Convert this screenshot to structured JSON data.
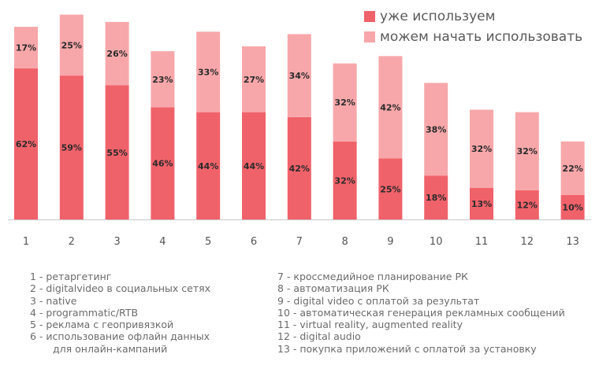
{
  "chart_data": {
    "type": "bar",
    "stacked": true,
    "categories": [
      "1",
      "2",
      "3",
      "4",
      "5",
      "6",
      "7",
      "8",
      "9",
      "10",
      "11",
      "12",
      "13"
    ],
    "series": [
      {
        "name": "уже используем",
        "color": "#f0626a",
        "values": [
          62,
          59,
          55,
          46,
          44,
          44,
          42,
          32,
          25,
          18,
          13,
          12,
          10
        ],
        "labels": [
          "62%",
          "59%",
          "55%",
          "46%",
          "44%",
          "44%",
          "42%",
          "32%",
          "25%",
          "18%",
          "13%",
          "12%",
          "10%"
        ]
      },
      {
        "name": "можем начать использовать",
        "color": "#f7a7aa",
        "values": [
          17,
          25,
          26,
          23,
          33,
          27,
          34,
          32,
          42,
          38,
          32,
          32,
          22
        ],
        "labels": [
          "17%",
          "25%",
          "26%",
          "23%",
          "33%",
          "27%",
          "34%",
          "32%",
          "42%",
          "38%",
          "32%",
          "32%",
          "22%"
        ]
      }
    ],
    "legend_position": "top-right",
    "grid": false,
    "ylim": [
      0,
      84
    ]
  },
  "notes_left": [
    {
      "text": "1 - ретаргетинг"
    },
    {
      "text": "2 - digitalvideo в социальных сетях"
    },
    {
      "text": "3 - native"
    },
    {
      "text": "4 - programmatic/RTB"
    },
    {
      "text": "5 - реклама с геопривязкой"
    },
    {
      "text": "6 - использование офлайн данных"
    },
    {
      "text": "для онлайн-кампаний",
      "cont": true
    }
  ],
  "notes_right": [
    {
      "text": "7 - кроссмедийное планирование РК"
    },
    {
      "text": "8 - автоматизация РК"
    },
    {
      "text": "9 - digital video с оплатой за результат"
    },
    {
      "text": "10 - автоматическая генерация рекламных сообщений"
    },
    {
      "text": "11 - virtual reality, augmented reality"
    },
    {
      "text": "12 - digital audio"
    },
    {
      "text": "13 - покупка приложений с оплатой за установку"
    }
  ]
}
